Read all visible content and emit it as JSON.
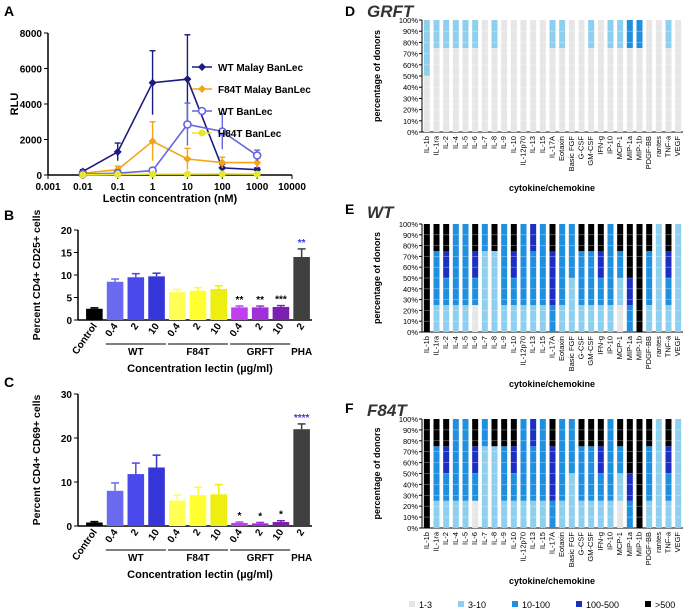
{
  "chart_data": [
    {
      "panel": "A",
      "type": "line",
      "xscale": "log",
      "xlabel": "Lectin concentration (nM)",
      "ylabel": "RLU",
      "xlim": [
        0.001,
        10000
      ],
      "ylim": [
        0,
        8000
      ],
      "xticks": [
        "0.001",
        "0.01",
        "0.1",
        "1",
        "10",
        "100",
        "1000",
        "10000"
      ],
      "yticks": [
        "0",
        "2000",
        "4000",
        "6000",
        "8000"
      ],
      "x": [
        0.01,
        0.1,
        1,
        10,
        100,
        1000
      ],
      "series": [
        {
          "name": "WT Malay BanLec",
          "color": "#1c1c80",
          "marker": "diamond-filled",
          "values": [
            200,
            1300,
            5200,
            5400,
            400,
            300
          ],
          "err": [
            100,
            500,
            1800,
            2500,
            200,
            100
          ]
        },
        {
          "name": "F84T Malay BanLec",
          "color": "#f2a516",
          "marker": "diamond-filled",
          "values": [
            100,
            300,
            1900,
            900,
            700,
            700
          ],
          "err": [
            50,
            200,
            1100,
            600,
            300,
            300
          ]
        },
        {
          "name": "WT BanLec",
          "color": "#6666e0",
          "marker": "circle-open",
          "values": [
            50,
            100,
            250,
            2850,
            2450,
            1100
          ],
          "err": [
            30,
            50,
            150,
            1200,
            1000,
            300
          ]
        },
        {
          "name": "H84T BanLec",
          "color": "#e8e82a",
          "marker": "circle-filled",
          "values": [
            10,
            30,
            50,
            50,
            60,
            50
          ],
          "err": [
            5,
            5,
            5,
            5,
            5,
            5
          ]
        }
      ]
    },
    {
      "panel": "B",
      "type": "bar",
      "ylabel": "Percent CD4+ CD25+ cells",
      "xlabel": "Concentration lectin (µg/ml)",
      "ylim": [
        0,
        20
      ],
      "yticks": [
        "0",
        "5",
        "10",
        "15",
        "20"
      ],
      "categories": [
        "Control",
        "0.4",
        "2",
        "10",
        "0.4",
        "2",
        "10",
        "0.4",
        "2",
        "10",
        "2"
      ],
      "groups": [
        "WT",
        "F84T",
        "GRFT",
        "PHA"
      ],
      "values": [
        2.5,
        8.5,
        9.5,
        9.7,
        6.2,
        6.5,
        6.9,
        2.8,
        2.8,
        2.9,
        14.0
      ],
      "err": [
        0.2,
        0.6,
        0.8,
        0.7,
        0.6,
        0.7,
        0.7,
        0.3,
        0.3,
        0.3,
        1.8
      ],
      "sig": [
        "",
        "",
        "",
        "",
        "",
        "",
        "",
        "**",
        "**",
        "***",
        "**"
      ]
    },
    {
      "panel": "C",
      "type": "bar",
      "ylabel": "Percent CD4+ CD69+ cells",
      "xlabel": "Concentration lectin (µg/ml)",
      "ylim": [
        0,
        30
      ],
      "yticks": [
        "0",
        "10",
        "20",
        "30"
      ],
      "categories": [
        "Control",
        "0.4",
        "2",
        "10",
        "0.4",
        "2",
        "10",
        "0.4",
        "2",
        "10",
        "2"
      ],
      "groups": [
        "WT",
        "F84T",
        "GRFT",
        "PHA"
      ],
      "values": [
        0.8,
        8.0,
        11.8,
        13.3,
        5.8,
        7.0,
        7.2,
        0.7,
        0.6,
        0.9,
        22.0
      ],
      "err": [
        0.2,
        1.8,
        2.5,
        2.8,
        1.2,
        1.8,
        2.2,
        0.2,
        0.2,
        0.3,
        1.2
      ],
      "sig": [
        "",
        "",
        "",
        "",
        "",
        "",
        "",
        "*",
        "*",
        "*",
        "****"
      ]
    },
    {
      "panel": "D",
      "type": "stacked-bar",
      "title": "GRFT",
      "ylabel": "percentage of donors",
      "xlabel": "cytokine/chemokine",
      "categories": [
        "IL-1b",
        "IL-1ra",
        "IL-2",
        "IL-4",
        "IL-5",
        "IL-6",
        "IL-7",
        "IL-8",
        "IL-9",
        "IL-10",
        "IL-12p70",
        "IL-13",
        "IL-15",
        "IL-17A",
        "Eotaxin",
        "Basic FGF",
        "G-CSF",
        "GM-CSF",
        "IFN-g",
        "IP-10",
        "MCP-1",
        "MIP-1a",
        "MIP-1b",
        "PDGF-BB",
        "rantes",
        "TNF-a",
        "VEGF"
      ],
      "yticks": [
        "0%",
        "10%",
        "20%",
        "30%",
        "40%",
        "50%",
        "60%",
        "70%",
        "80%",
        "90%",
        "100%"
      ],
      "stacks": [
        [
          2,
          2,
          0,
          0,
          0
        ],
        [
          3,
          1,
          0,
          0,
          0
        ],
        [
          3,
          1,
          0,
          0,
          0
        ],
        [
          3,
          1,
          0,
          0,
          0
        ],
        [
          3,
          1,
          0,
          0,
          0
        ],
        [
          3,
          1,
          0,
          0,
          0
        ],
        [
          4,
          0,
          0,
          0,
          0
        ],
        [
          3,
          1,
          0,
          0,
          0
        ],
        [
          4,
          0,
          0,
          0,
          0
        ],
        [
          4,
          0,
          0,
          0,
          0
        ],
        [
          4,
          0,
          0,
          0,
          0
        ],
        [
          4,
          0,
          0,
          0,
          0
        ],
        [
          4,
          0,
          0,
          0,
          0
        ],
        [
          3,
          1,
          0,
          0,
          0
        ],
        [
          3,
          1,
          0,
          0,
          0
        ],
        [
          4,
          0,
          0,
          0,
          0
        ],
        [
          4,
          0,
          0,
          0,
          0
        ],
        [
          3,
          1,
          0,
          0,
          0
        ],
        [
          4,
          0,
          0,
          0,
          0
        ],
        [
          3,
          1,
          0,
          0,
          0
        ],
        [
          3,
          1,
          0,
          0,
          0
        ],
        [
          3,
          0,
          1,
          0,
          0
        ],
        [
          3,
          0,
          1,
          0,
          0
        ],
        [
          4,
          0,
          0,
          0,
          0
        ],
        [
          4,
          0,
          0,
          0,
          0
        ],
        [
          3,
          1,
          0,
          0,
          0
        ],
        [
          4,
          0,
          0,
          0,
          0
        ]
      ]
    },
    {
      "panel": "E",
      "type": "stacked-bar",
      "title": "WT",
      "ylabel": "percentage of donors",
      "xlabel": "cytokine/chemokine",
      "categories": [
        "IL-1b",
        "IL-1ra",
        "IL-2",
        "IL-4",
        "IL-5",
        "IL-6",
        "IL-7",
        "IL-8",
        "IL-9",
        "IL-10",
        "IL-12p70",
        "IL-13",
        "IL-15",
        "IL-17A",
        "Eotaxin",
        "Basic FGF",
        "G-CSF",
        "GM-CSF",
        "IFN-g",
        "IP-10",
        "MCP-1",
        "MIP-1a",
        "MIP-1b",
        "PDGF-BB",
        "rantes",
        "TNF-a",
        "VEGF"
      ],
      "yticks": [
        "0%",
        "10%",
        "20%",
        "30%",
        "40%",
        "50%",
        "60%",
        "70%",
        "80%",
        "90%",
        "100%"
      ],
      "stacks": [
        [
          0,
          0,
          0,
          0,
          4
        ],
        [
          0,
          1,
          2,
          0,
          1
        ],
        [
          0,
          1,
          1,
          1,
          1
        ],
        [
          0,
          1,
          3,
          0,
          0
        ],
        [
          0,
          1,
          3,
          0,
          0
        ],
        [
          1,
          0,
          1,
          1,
          1
        ],
        [
          0,
          3,
          1,
          0,
          0
        ],
        [
          0,
          3,
          0,
          0,
          1
        ],
        [
          0,
          1,
          3,
          0,
          0
        ],
        [
          0,
          1,
          1,
          1,
          1
        ],
        [
          0,
          1,
          3,
          0,
          0
        ],
        [
          0,
          1,
          2,
          1,
          0
        ],
        [
          0,
          1,
          3,
          0,
          0
        ],
        [
          0,
          0,
          1,
          2,
          1
        ],
        [
          0,
          1,
          3,
          0,
          0
        ],
        [
          0,
          2,
          2,
          0,
          0
        ],
        [
          0,
          1,
          2,
          0,
          1
        ],
        [
          0,
          1,
          2,
          0,
          1
        ],
        [
          0,
          1,
          1,
          1,
          1
        ],
        [
          0,
          1,
          3,
          0,
          0
        ],
        [
          1,
          1,
          1,
          0,
          1
        ],
        [
          0,
          0,
          1,
          1,
          2
        ],
        [
          0,
          0,
          0,
          0,
          4
        ],
        [
          0,
          1,
          2,
          0,
          1
        ],
        [
          0,
          4,
          0,
          0,
          0
        ],
        [
          0,
          1,
          1,
          1,
          1
        ],
        [
          0,
          4,
          0,
          0,
          0
        ]
      ]
    },
    {
      "panel": "F",
      "type": "stacked-bar",
      "title": "F84T",
      "ylabel": "percentage of donors",
      "xlabel": "cytokine/chemokine",
      "categories": [
        "IL-1b",
        "IL-1ra",
        "IL-2",
        "IL-4",
        "IL-5",
        "IL-6",
        "IL-7",
        "IL-8",
        "IL-9",
        "IL-10",
        "IL-12p70",
        "IL-13",
        "IL-15",
        "IL-17A",
        "Eotaxin",
        "Basic FGF",
        "G-CSF",
        "GM-CSF",
        "IFN-g",
        "IP-10",
        "MCP-1",
        "MIP-1a",
        "MIP-1b",
        "PDGF-BB",
        "rantes",
        "TNF-a",
        "VEGF"
      ],
      "yticks": [
        "0%",
        "10%",
        "20%",
        "30%",
        "40%",
        "50%",
        "60%",
        "70%",
        "80%",
        "90%",
        "100%"
      ],
      "stacks": [
        [
          0,
          0,
          0,
          0,
          4
        ],
        [
          0,
          1,
          2,
          0,
          1
        ],
        [
          0,
          1,
          1,
          1,
          1
        ],
        [
          0,
          1,
          3,
          0,
          0
        ],
        [
          0,
          1,
          3,
          0,
          0
        ],
        [
          1,
          0,
          1,
          1,
          1
        ],
        [
          0,
          3,
          1,
          0,
          0
        ],
        [
          0,
          3,
          0,
          0,
          1
        ],
        [
          0,
          1,
          2,
          0,
          1
        ],
        [
          0,
          1,
          1,
          1,
          1
        ],
        [
          0,
          1,
          3,
          0,
          0
        ],
        [
          0,
          1,
          2,
          1,
          0
        ],
        [
          0,
          1,
          3,
          0,
          0
        ],
        [
          0,
          0,
          1,
          2,
          1
        ],
        [
          0,
          1,
          3,
          0,
          0
        ],
        [
          0,
          2,
          2,
          0,
          0
        ],
        [
          0,
          1,
          2,
          0,
          1
        ],
        [
          0,
          1,
          2,
          0,
          1
        ],
        [
          0,
          1,
          1,
          1,
          1
        ],
        [
          0,
          1,
          3,
          0,
          0
        ],
        [
          1,
          1,
          1,
          0,
          1
        ],
        [
          0,
          0,
          1,
          1,
          2
        ],
        [
          0,
          0,
          0,
          0,
          4
        ],
        [
          0,
          1,
          2,
          0,
          1
        ],
        [
          0,
          4,
          0,
          0,
          0
        ],
        [
          0,
          1,
          1,
          1,
          1
        ],
        [
          0,
          4,
          0,
          0,
          0
        ]
      ]
    }
  ],
  "labels": {
    "A": "A",
    "B": "B",
    "C": "C",
    "D": "D",
    "E": "E",
    "F": "F"
  },
  "legend": {
    "stack_colors": [
      "#e6e6e6",
      "#8dcfee",
      "#1f8fe0",
      "#1c2fc2",
      "#000000"
    ],
    "stack_labels": [
      "1-3",
      "3-10",
      "10-100",
      "100-500",
      ">500"
    ]
  },
  "bar_colors": [
    "#000000",
    "#6a6af0",
    "#4a4aec",
    "#3636d8",
    "#ffff55",
    "#ffff30",
    "#eeee10",
    "#c040f0",
    "#a030d8",
    "#7a20b0",
    "#404040"
  ],
  "sig_colors": [
    "#000000",
    "#000000",
    "#000000",
    "#000000",
    "#000000",
    "#000000",
    "#000000",
    "#000000",
    "#000000",
    "#000000",
    "#3b3bdd"
  ]
}
